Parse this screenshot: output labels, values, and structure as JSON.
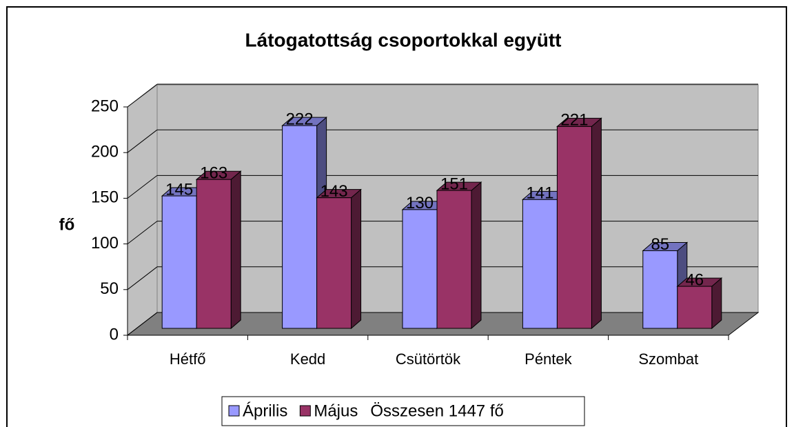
{
  "chart_data": {
    "type": "bar3d",
    "title": "Látogatottság csoportokkal együtt",
    "y_label": "fő",
    "categories": [
      "Hétfő",
      "Kedd",
      "Csütörtök",
      "Péntek",
      "Szombat"
    ],
    "series": [
      {
        "name": "Április",
        "color": "#9999ff",
        "values": [
          145,
          222,
          130,
          141,
          85
        ]
      },
      {
        "name": "Május",
        "color": "#993366",
        "values": [
          163,
          143,
          151,
          221,
          46
        ]
      }
    ],
    "legend_note": "Összesen 1447 fő",
    "ylim": [
      0,
      250
    ],
    "yticks": [
      0,
      50,
      100,
      150,
      200,
      250
    ],
    "grid": true,
    "legend": "bottom"
  }
}
